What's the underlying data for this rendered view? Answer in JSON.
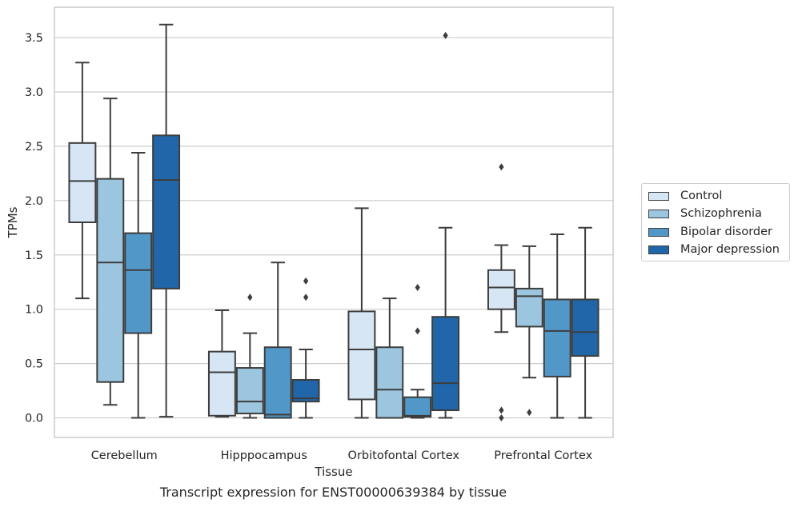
{
  "caption": "Transcript expression for ENST00000639384 by tissue",
  "chart_data": {
    "type": "boxplot",
    "title": "",
    "xlabel": "Tissue",
    "ylabel": "TPMs",
    "ylim": [
      -0.18,
      3.78
    ],
    "yticks": [
      0.0,
      0.5,
      1.0,
      1.5,
      2.0,
      2.5,
      3.0,
      3.5
    ],
    "ytick_labels": [
      "0.0",
      "0.5",
      "1.0",
      "1.5",
      "2.0",
      "2.5",
      "3.0",
      "3.5"
    ],
    "grid": "horizontal",
    "legend_position": "right",
    "categories": [
      "Cerebellum",
      "Hipppocampus",
      "Orbitofontal Cortex",
      "Prefrontal Cortex"
    ],
    "series": [
      {
        "name": "Control",
        "color": "#d6e6f4",
        "boxes": [
          {
            "whislo": 1.1,
            "q1": 1.8,
            "med": 2.18,
            "q3": 2.53,
            "whishi": 3.27,
            "fliers": []
          },
          {
            "whislo": 0.01,
            "q1": 0.02,
            "med": 0.42,
            "q3": 0.61,
            "whishi": 0.99,
            "fliers": []
          },
          {
            "whislo": 0.0,
            "q1": 0.17,
            "med": 0.63,
            "q3": 0.98,
            "whishi": 1.93,
            "fliers": []
          },
          {
            "whislo": 0.79,
            "q1": 1.0,
            "med": 1.2,
            "q3": 1.36,
            "whishi": 1.59,
            "fliers": [
              2.31,
              0.07,
              0.0
            ]
          }
        ]
      },
      {
        "name": "Schizophrenia",
        "color": "#9cc5df",
        "boxes": [
          {
            "whislo": 0.12,
            "q1": 0.33,
            "med": 1.43,
            "q3": 2.2,
            "whishi": 2.94,
            "fliers": []
          },
          {
            "whislo": 0.0,
            "q1": 0.04,
            "med": 0.15,
            "q3": 0.46,
            "whishi": 0.78,
            "fliers": [
              1.11
            ]
          },
          {
            "whislo": 0.0,
            "q1": 0.0,
            "med": 0.26,
            "q3": 0.65,
            "whishi": 1.1,
            "fliers": []
          },
          {
            "whislo": 0.37,
            "q1": 0.84,
            "med": 1.12,
            "q3": 1.19,
            "whishi": 1.58,
            "fliers": [
              0.05
            ]
          }
        ]
      },
      {
        "name": "Bipolar disorder",
        "color": "#5198c9",
        "boxes": [
          {
            "whislo": 0.0,
            "q1": 0.78,
            "med": 1.36,
            "q3": 1.7,
            "whishi": 2.44,
            "fliers": []
          },
          {
            "whislo": 0.0,
            "q1": 0.0,
            "med": 0.03,
            "q3": 0.65,
            "whishi": 1.43,
            "fliers": []
          },
          {
            "whislo": 0.0,
            "q1": 0.01,
            "med": 0.02,
            "q3": 0.19,
            "whishi": 0.26,
            "fliers": [
              1.2,
              0.8
            ]
          },
          {
            "whislo": 0.0,
            "q1": 0.38,
            "med": 0.8,
            "q3": 1.09,
            "whishi": 1.69,
            "fliers": []
          }
        ]
      },
      {
        "name": "Major depression",
        "color": "#2166a8",
        "boxes": [
          {
            "whislo": 0.01,
            "q1": 1.19,
            "med": 2.19,
            "q3": 2.6,
            "whishi": 3.62,
            "fliers": []
          },
          {
            "whislo": 0.0,
            "q1": 0.15,
            "med": 0.18,
            "q3": 0.35,
            "whishi": 0.63,
            "fliers": [
              1.26,
              1.11
            ]
          },
          {
            "whislo": 0.0,
            "q1": 0.07,
            "med": 0.32,
            "q3": 0.93,
            "whishi": 1.75,
            "fliers": [
              3.52
            ]
          },
          {
            "whislo": 0.0,
            "q1": 0.57,
            "med": 0.79,
            "q3": 1.09,
            "whishi": 1.75,
            "fliers": []
          }
        ]
      }
    ]
  }
}
